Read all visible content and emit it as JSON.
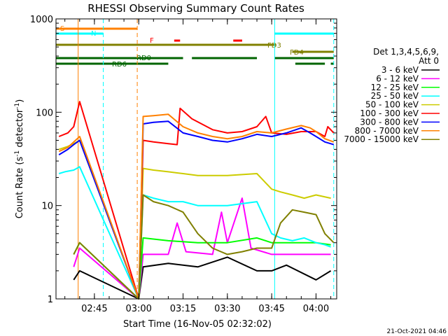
{
  "chart_data": {
    "type": "line",
    "title": "RHESSI Observing Summary Count Rates",
    "xlabel": "Start Time (16-Nov-05 02:32:02)",
    "ylabel": "Count Rate (s⁻¹ detector⁻¹)",
    "yscale": "log",
    "ylim": [
      1,
      1000
    ],
    "xlim_minutes": [
      152,
      247
    ],
    "x_ticks": [
      {
        "label": "02:45",
        "minute": 165
      },
      {
        "label": "03:00",
        "minute": 180
      },
      {
        "label": "03:15",
        "minute": 195
      },
      {
        "label": "03:30",
        "minute": 210
      },
      {
        "label": "03:45",
        "minute": 225
      },
      {
        "label": "04:00",
        "minute": 240
      }
    ],
    "y_ticks": [
      {
        "label": "1",
        "value": 1
      },
      {
        "label": "10",
        "value": 10
      },
      {
        "label": "100",
        "value": 100
      },
      {
        "label": "1000",
        "value": 1000
      }
    ],
    "legend_title": [
      "Det 1,3,4,5,6,9,",
      "Att 0"
    ],
    "legend_placement": "right",
    "timestamp": "21-Oct-2021 04:46",
    "series": [
      {
        "name": "3 - 6 keV",
        "color": "#000000",
        "points": [
          [
            158,
            1.6
          ],
          [
            160,
            2.0
          ],
          [
            180,
            1.0
          ],
          [
            181.5,
            2.2
          ],
          [
            190,
            2.4
          ],
          [
            200,
            2.2
          ],
          [
            210,
            2.8
          ],
          [
            220,
            2.0
          ],
          [
            225,
            2.0
          ],
          [
            230,
            2.3
          ],
          [
            240,
            1.6
          ],
          [
            245,
            2.0
          ]
        ]
      },
      {
        "name": "6 - 12 keV",
        "color": "#ff00ff",
        "points": [
          [
            158,
            2.2
          ],
          [
            160,
            3.5
          ],
          [
            180,
            1.0
          ],
          [
            181.5,
            3.0
          ],
          [
            190,
            3.0
          ],
          [
            193,
            6.5
          ],
          [
            196,
            3.2
          ],
          [
            205,
            3.0
          ],
          [
            208,
            8.5
          ],
          [
            210,
            4.0
          ],
          [
            215,
            12.0
          ],
          [
            218,
            3.5
          ],
          [
            225,
            3.0
          ],
          [
            235,
            3.0
          ],
          [
            245,
            3.0
          ]
        ]
      },
      {
        "name": "12 - 25 keV",
        "color": "#00ff00",
        "points": [
          [
            158,
            3.0
          ],
          [
            160,
            4.0
          ],
          [
            180,
            1.0
          ],
          [
            181.5,
            4.5
          ],
          [
            190,
            4.2
          ],
          [
            200,
            4.0
          ],
          [
            210,
            4.0
          ],
          [
            220,
            4.5
          ],
          [
            225,
            4.0
          ],
          [
            230,
            4.0
          ],
          [
            240,
            4.0
          ],
          [
            245,
            3.8
          ]
        ]
      },
      {
        "name": "25 - 50 keV",
        "color": "#00ffff",
        "points": [
          [
            153,
            22
          ],
          [
            155,
            23
          ],
          [
            158,
            24
          ],
          [
            160,
            26
          ],
          [
            180,
            1.0
          ],
          [
            181.5,
            13
          ],
          [
            185,
            12
          ],
          [
            190,
            11
          ],
          [
            195,
            11
          ],
          [
            200,
            10
          ],
          [
            210,
            10
          ],
          [
            220,
            11
          ],
          [
            225,
            5
          ],
          [
            228,
            4.5
          ],
          [
            232,
            4.2
          ],
          [
            236,
            4.5
          ],
          [
            240,
            4.0
          ],
          [
            243,
            3.8
          ],
          [
            245,
            3.6
          ]
        ]
      },
      {
        "name": "50 - 100 keV",
        "color": "#cccc00",
        "points": [
          [
            153,
            40
          ],
          [
            156,
            43
          ],
          [
            158,
            46
          ],
          [
            160,
            50
          ],
          [
            180,
            1.0
          ],
          [
            181.5,
            25
          ],
          [
            185,
            24
          ],
          [
            190,
            23
          ],
          [
            195,
            22
          ],
          [
            200,
            21
          ],
          [
            210,
            21
          ],
          [
            220,
            22
          ],
          [
            225,
            15
          ],
          [
            228,
            14
          ],
          [
            232,
            13
          ],
          [
            236,
            12
          ],
          [
            240,
            13
          ],
          [
            245,
            12
          ]
        ]
      },
      {
        "name": "100 - 300 keV",
        "color": "#ff0000",
        "points": [
          [
            153,
            55
          ],
          [
            156,
            60
          ],
          [
            158,
            70
          ],
          [
            160,
            130
          ],
          [
            180,
            1.0
          ],
          [
            181.5,
            50
          ],
          [
            185,
            48
          ],
          [
            190,
            46
          ],
          [
            193,
            45
          ],
          [
            194,
            110
          ],
          [
            198,
            85
          ],
          [
            205,
            65
          ],
          [
            210,
            60
          ],
          [
            215,
            62
          ],
          [
            220,
            70
          ],
          [
            223,
            90
          ],
          [
            225,
            60
          ],
          [
            230,
            58
          ],
          [
            235,
            62
          ],
          [
            240,
            62
          ],
          [
            243,
            55
          ],
          [
            244,
            70
          ],
          [
            246,
            60
          ]
        ]
      },
      {
        "name": "300 - 800 keV",
        "color": "#0000ff",
        "points": [
          [
            153,
            35
          ],
          [
            156,
            40
          ],
          [
            158,
            45
          ],
          [
            160,
            50
          ],
          [
            180,
            1.0
          ],
          [
            181.5,
            75
          ],
          [
            185,
            78
          ],
          [
            190,
            80
          ],
          [
            195,
            60
          ],
          [
            200,
            55
          ],
          [
            205,
            50
          ],
          [
            210,
            48
          ],
          [
            215,
            52
          ],
          [
            220,
            58
          ],
          [
            225,
            55
          ],
          [
            230,
            60
          ],
          [
            235,
            68
          ],
          [
            238,
            60
          ],
          [
            240,
            55
          ],
          [
            243,
            48
          ],
          [
            246,
            45
          ]
        ]
      },
      {
        "name": "800 - 7000 keV",
        "color": "#ff8000",
        "points": [
          [
            153,
            38
          ],
          [
            156,
            42
          ],
          [
            158,
            48
          ],
          [
            160,
            55
          ],
          [
            180,
            1.0
          ],
          [
            181.5,
            90
          ],
          [
            185,
            92
          ],
          [
            190,
            95
          ],
          [
            195,
            70
          ],
          [
            200,
            60
          ],
          [
            205,
            55
          ],
          [
            210,
            52
          ],
          [
            215,
            55
          ],
          [
            220,
            62
          ],
          [
            225,
            60
          ],
          [
            230,
            66
          ],
          [
            235,
            72
          ],
          [
            238,
            68
          ],
          [
            240,
            62
          ],
          [
            243,
            52
          ],
          [
            246,
            48
          ]
        ]
      },
      {
        "name": "7000 - 15000 keV",
        "color": "#808000",
        "points": [
          [
            158,
            3.0
          ],
          [
            160,
            4.0
          ],
          [
            180,
            1.0
          ],
          [
            181.5,
            13
          ],
          [
            185,
            11
          ],
          [
            190,
            10
          ],
          [
            195,
            8.5
          ],
          [
            200,
            5.0
          ],
          [
            205,
            3.5
          ],
          [
            210,
            3.0
          ],
          [
            215,
            3.2
          ],
          [
            220,
            3.5
          ],
          [
            225,
            3.5
          ],
          [
            228,
            6.5
          ],
          [
            232,
            9.0
          ],
          [
            236,
            8.5
          ],
          [
            240,
            8.0
          ],
          [
            243,
            5.0
          ],
          [
            246,
            4.0
          ]
        ]
      }
    ],
    "flag_bars": [
      {
        "label": "S",
        "color": "#ff8000",
        "segments": [
          [
            152,
            179.5
          ]
        ]
      },
      {
        "label": "N",
        "color": "#00ffff",
        "segments": [
          [
            152,
            168
          ],
          [
            226,
            246
          ]
        ]
      },
      {
        "label": "F",
        "color": "#ff0000",
        "segments": [
          [
            192,
            194
          ],
          [
            212,
            215
          ]
        ]
      },
      {
        "label": "FD3",
        "color": "#808000",
        "segments": [
          [
            152,
            226.5
          ]
        ]
      },
      {
        "label": "FD4",
        "color": "#808000",
        "segments": [
          [
            232,
            246
          ]
        ]
      },
      {
        "label": "RD0",
        "color": "#006400",
        "segments": [
          [
            152,
            195
          ],
          [
            198,
            220
          ],
          [
            226,
            246
          ]
        ]
      },
      {
        "label": "RD6",
        "color": "#006400",
        "segments": [
          [
            152,
            190
          ],
          [
            233,
            243
          ],
          [
            245,
            246
          ]
        ]
      }
    ],
    "vlines": [
      {
        "minute": 159.5,
        "color": "#ff8000",
        "style": "solid"
      },
      {
        "minute": 168,
        "color": "#00ffff",
        "style": "dashed"
      },
      {
        "minute": 179.5,
        "color": "#ff8000",
        "style": "dashed"
      },
      {
        "minute": 226,
        "color": "#00ffff",
        "style": "solid"
      },
      {
        "minute": 246,
        "color": "#00ffff",
        "style": "dashed"
      }
    ]
  }
}
